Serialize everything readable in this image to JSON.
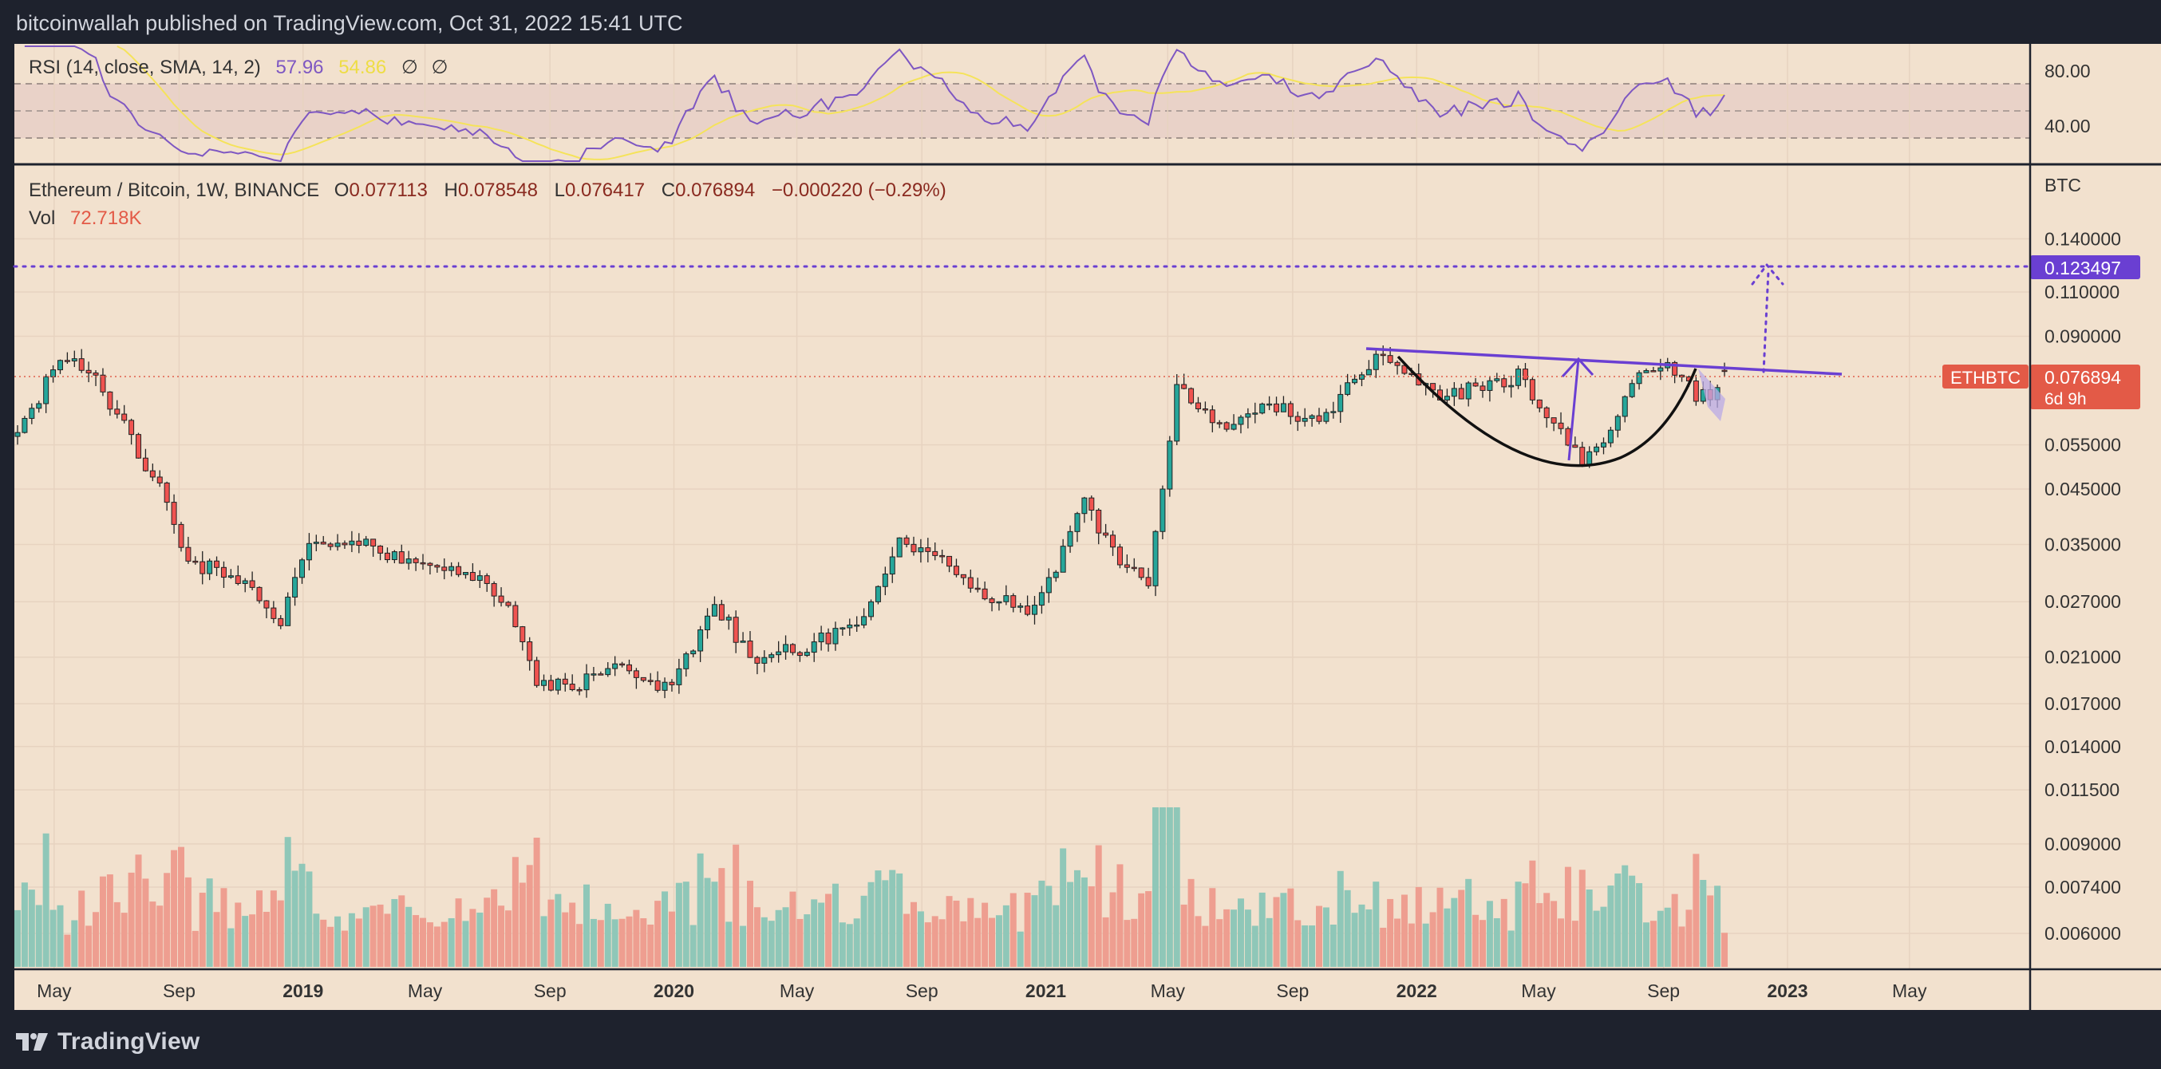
{
  "header": {
    "published_text": "bitcoinwallah published on TradingView.com, Oct 31, 2022 15:41 UTC"
  },
  "footer": {
    "brand": "TradingView"
  },
  "rsi": {
    "label": "RSI (14, close, SMA, 14, 2)",
    "value": "57.96",
    "sma_value": "54.86",
    "extra1": "∅",
    "extra2": "∅",
    "ticks": [
      "80.00",
      "40.00"
    ],
    "line_color": "#7e57c2",
    "sma_color": "#f5e35a"
  },
  "main": {
    "symbol": "Ethereum / Bitcoin, 1W, BINANCE",
    "o_label": "O",
    "o_value": "0.077113",
    "h_label": "H",
    "h_value": "0.078548",
    "l_label": "L",
    "l_value": "0.076417",
    "c_label": "C",
    "c_value": "0.076894",
    "change": "−0.000220 (−0.29%)",
    "vol_label": "Vol",
    "vol_value": "72.718K",
    "currency": "BTC",
    "target_label": "0.123497",
    "symbol_tag": "ETHBTC",
    "last_price": "0.076894",
    "countdown": "6d 9h",
    "up_color": "#26a69a",
    "down_color": "#ef5350",
    "annotation_color": "#6a3fd2"
  },
  "chart_data": {
    "type": "candlestick",
    "title": "Ethereum / Bitcoin, 1W, BINANCE",
    "y_scale": "log",
    "y_ticks": [
      "0.140000",
      "0.110000",
      "0.090000",
      "0.055000",
      "0.045000",
      "0.035000",
      "0.027000",
      "0.021000",
      "0.017000",
      "0.014000",
      "0.011500",
      "0.009000",
      "0.007400",
      "0.006000"
    ],
    "x_ticks": [
      "May",
      "Sep",
      "2019",
      "May",
      "Sep",
      "2020",
      "May",
      "Sep",
      "2021",
      "May",
      "Sep",
      "2022",
      "May",
      "Sep",
      "2023",
      "May"
    ],
    "x_tick_bold": [
      false,
      false,
      true,
      false,
      false,
      true,
      false,
      false,
      true,
      false,
      false,
      true,
      false,
      false,
      true,
      false
    ],
    "last_close": 0.076894,
    "target_level": 0.123497,
    "anchors": [
      {
        "date": "2018-03-26",
        "close": 0.058
      },
      {
        "date": "2018-05-07",
        "close": 0.081
      },
      {
        "date": "2018-06-11",
        "close": 0.075
      },
      {
        "date": "2018-08-13",
        "close": 0.045
      },
      {
        "date": "2018-09-10",
        "close": 0.032
      },
      {
        "date": "2018-10-22",
        "close": 0.031
      },
      {
        "date": "2018-12-10",
        "close": 0.025
      },
      {
        "date": "2019-01-07",
        "close": 0.036
      },
      {
        "date": "2019-03-04",
        "close": 0.035
      },
      {
        "date": "2019-04-15",
        "close": 0.032
      },
      {
        "date": "2019-06-10",
        "close": 0.031
      },
      {
        "date": "2019-07-22",
        "close": 0.027
      },
      {
        "date": "2019-08-19",
        "close": 0.019
      },
      {
        "date": "2019-09-23",
        "close": 0.018
      },
      {
        "date": "2019-11-04",
        "close": 0.021
      },
      {
        "date": "2019-12-30",
        "close": 0.018
      },
      {
        "date": "2020-02-10",
        "close": 0.027
      },
      {
        "date": "2020-03-16",
        "close": 0.021
      },
      {
        "date": "2020-05-11",
        "close": 0.022
      },
      {
        "date": "2020-07-06",
        "close": 0.025
      },
      {
        "date": "2020-08-10",
        "close": 0.035
      },
      {
        "date": "2020-09-21",
        "close": 0.033
      },
      {
        "date": "2020-11-02",
        "close": 0.028
      },
      {
        "date": "2020-12-21",
        "close": 0.026
      },
      {
        "date": "2021-02-08",
        "close": 0.042
      },
      {
        "date": "2021-03-15",
        "close": 0.033
      },
      {
        "date": "2021-04-12",
        "close": 0.03
      },
      {
        "date": "2021-05-10",
        "close": 0.072
      },
      {
        "date": "2021-06-21",
        "close": 0.06
      },
      {
        "date": "2021-08-09",
        "close": 0.066
      },
      {
        "date": "2021-09-27",
        "close": 0.061
      },
      {
        "date": "2021-11-22",
        "close": 0.082
      },
      {
        "date": "2022-01-24",
        "close": 0.068
      },
      {
        "date": "2022-04-11",
        "close": 0.075
      },
      {
        "date": "2022-05-16",
        "close": 0.06
      },
      {
        "date": "2022-06-13",
        "close": 0.052
      },
      {
        "date": "2022-07-11",
        "close": 0.057
      },
      {
        "date": "2022-08-08",
        "close": 0.078
      },
      {
        "date": "2022-09-12",
        "close": 0.078
      },
      {
        "date": "2022-10-03",
        "close": 0.069
      },
      {
        "date": "2022-10-17",
        "close": 0.068
      },
      {
        "date": "2022-10-31",
        "close": 0.076894
      }
    ]
  }
}
